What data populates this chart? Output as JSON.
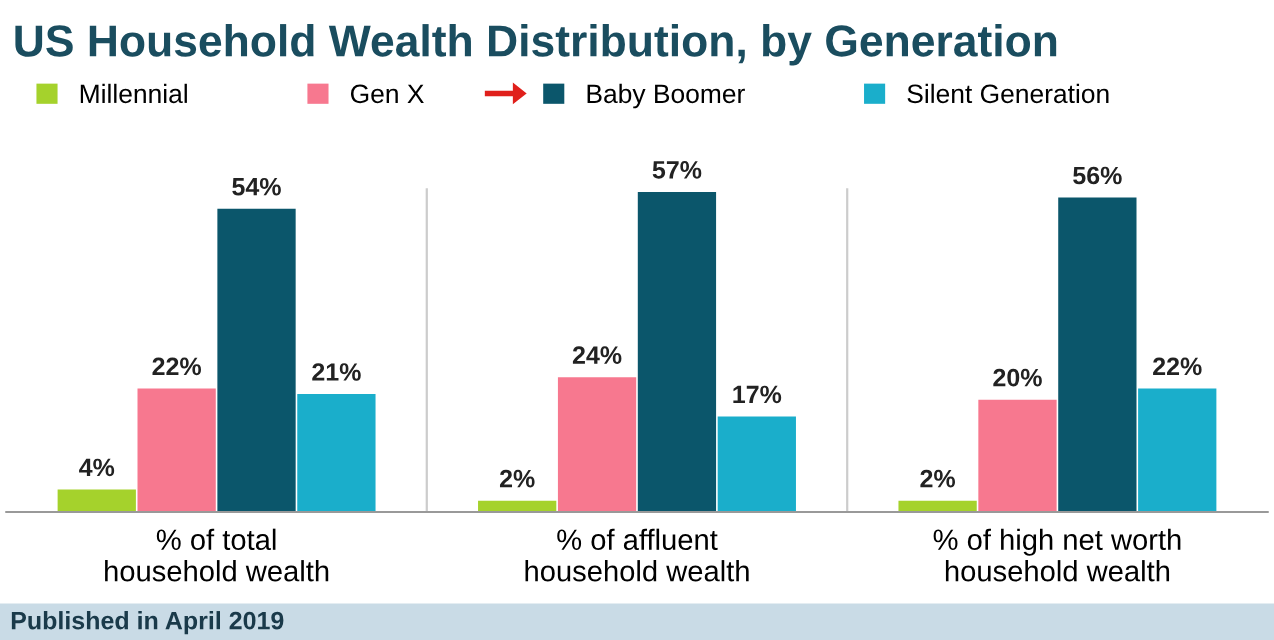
{
  "chart_data": {
    "type": "bar",
    "title": "US Household Wealth Distribution, by Generation",
    "categories": [
      "% of total\nhousehold wealth",
      "% of affluent\nhousehold wealth",
      "% of high net worth\nhousehold wealth"
    ],
    "series": [
      {
        "name": "Millennial",
        "color": "#a5d22c",
        "values": [
          4,
          2,
          2
        ],
        "value_labels": [
          "4%",
          "2%",
          "2%"
        ]
      },
      {
        "name": "Gen X",
        "color": "#f7788f",
        "values": [
          22,
          24,
          20
        ],
        "value_labels": [
          "22%",
          "24%",
          "20%"
        ]
      },
      {
        "name": "Baby Boomer",
        "color": "#0b566b",
        "values": [
          54,
          57,
          56
        ],
        "value_labels": [
          "54%",
          "57%",
          "56%"
        ]
      },
      {
        "name": "Silent Generation",
        "color": "#1aaecb",
        "values": [
          21,
          17,
          22
        ],
        "value_labels": [
          "21%",
          "17%",
          "22%"
        ]
      }
    ],
    "legend": "top",
    "grid": false,
    "annotations": [
      "Published in April 2019"
    ]
  }
}
